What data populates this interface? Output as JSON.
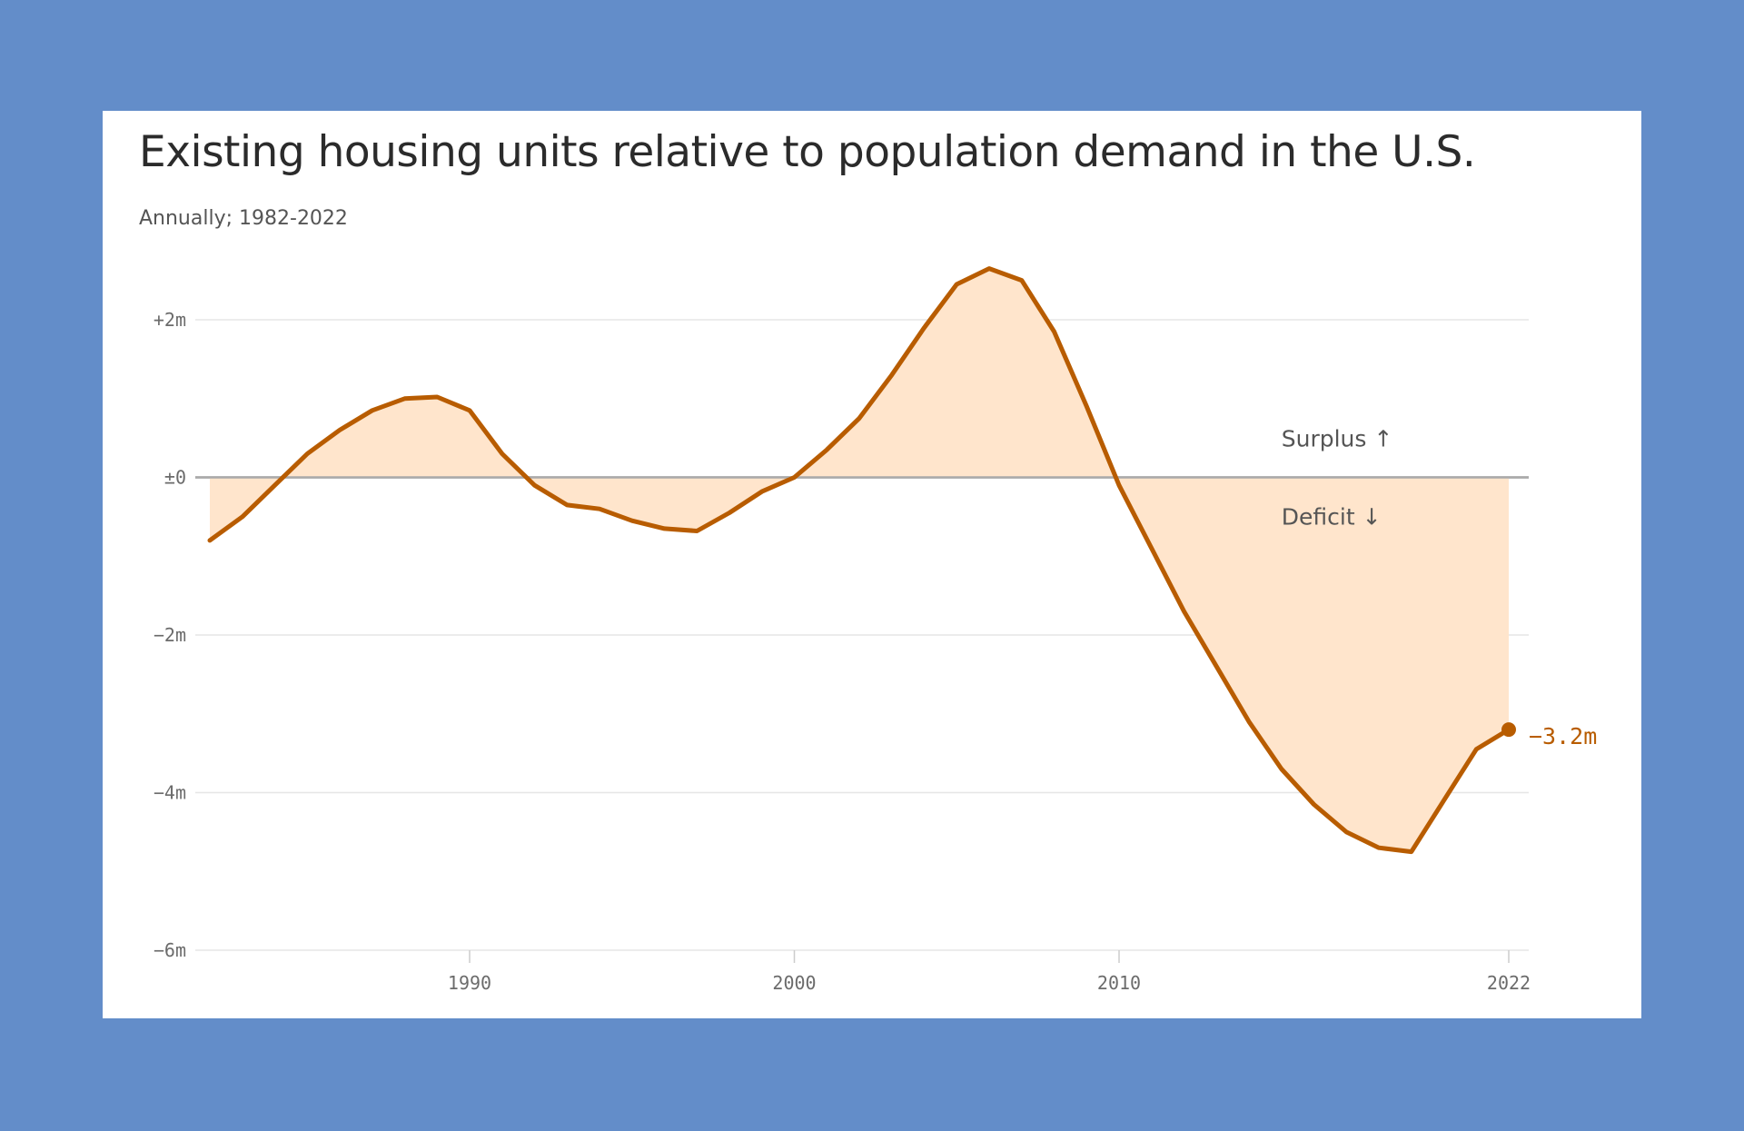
{
  "chart_data": {
    "type": "area",
    "title": "Existing housing units relative to population demand in the U.S.",
    "subtitle": "Annually; 1982-2022",
    "xlabel": "",
    "ylabel": "",
    "x": [
      1982,
      1983,
      1984,
      1985,
      1986,
      1987,
      1988,
      1989,
      1990,
      1991,
      1992,
      1993,
      1994,
      1995,
      1996,
      1997,
      1998,
      1999,
      2000,
      2001,
      2002,
      2003,
      2004,
      2005,
      2006,
      2007,
      2008,
      2009,
      2010,
      2011,
      2012,
      2013,
      2014,
      2015,
      2016,
      2017,
      2018,
      2019,
      2020,
      2021,
      2022
    ],
    "series": [
      {
        "values": [
          -0.8,
          -0.5,
          -0.1,
          0.3,
          0.6,
          0.85,
          1.0,
          1.02,
          0.85,
          0.3,
          -0.1,
          -0.35,
          -0.4,
          -0.55,
          -0.65,
          -0.68,
          -0.45,
          -0.18,
          0.0,
          0.35,
          0.75,
          1.3,
          1.9,
          2.45,
          2.65,
          2.5,
          1.85,
          0.9,
          -0.1,
          -0.9,
          -1.7,
          -2.4,
          -3.1,
          -3.7,
          -4.15,
          -4.5,
          -4.7,
          -4.75,
          -4.1,
          -3.45,
          -3.2
        ]
      }
    ],
    "ylim": [
      -6,
      2.8
    ],
    "xlim": [
      1982,
      2022
    ],
    "y_ticks": [
      {
        "value": 2,
        "label": "+2m"
      },
      {
        "value": 0,
        "label": "±0"
      },
      {
        "value": -2,
        "label": "−2m"
      },
      {
        "value": -4,
        "label": "−4m"
      },
      {
        "value": -6,
        "label": "−6m"
      }
    ],
    "x_ticks": [
      {
        "value": 1990,
        "label": "1990"
      },
      {
        "value": 2000,
        "label": "2000"
      },
      {
        "value": 2010,
        "label": "2010"
      },
      {
        "value": 2022,
        "label": "2022"
      }
    ],
    "annotations": {
      "surplus": "Surplus ↑",
      "deficit": "Deficit ↓",
      "end_value": "−3.2m"
    },
    "grid": true,
    "legend": "none"
  },
  "colors": {
    "background": "#638dc9",
    "card": "#ffffff",
    "line": "#b85c00",
    "fill": "#ffe5cc",
    "grid": "#e6e6e6",
    "zero_line": "#aaaaaa"
  }
}
